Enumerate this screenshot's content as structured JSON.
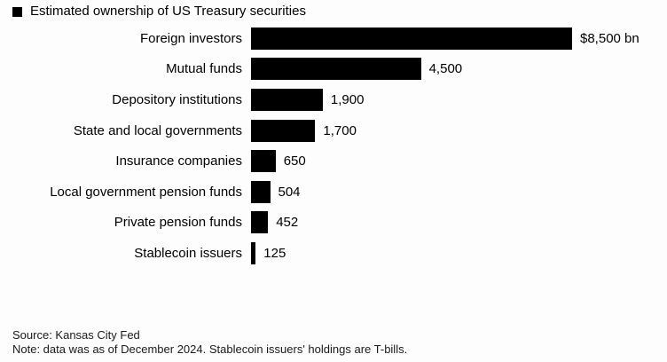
{
  "title": {
    "text": "Estimated ownership of US Treasury securities"
  },
  "chart_data": {
    "type": "bar",
    "orientation": "horizontal",
    "title": "Estimated ownership of US Treasury securities",
    "categories": [
      "Foreign investors",
      "Mutual funds",
      "Depository institutions",
      "State and local governments",
      "Insurance companies",
      "Local government pension funds",
      "Private pension funds",
      "Stablecoin issuers"
    ],
    "values": [
      8500,
      4500,
      1900,
      1700,
      650,
      504,
      452,
      125
    ],
    "value_labels": [
      "$8,500 bn",
      "4,500",
      "1,900",
      "1,700",
      "650",
      "504",
      "452",
      "125"
    ],
    "unit": "billions of US dollars",
    "xlim": [
      0,
      8500
    ],
    "grid": false,
    "bar_color": "#000000",
    "legend_position": "top-left"
  },
  "footer": {
    "source": "Source: Kansas City Fed",
    "note": "Note: data was as of December 2024. Stablecoin issuers' holdings are T-bills."
  }
}
